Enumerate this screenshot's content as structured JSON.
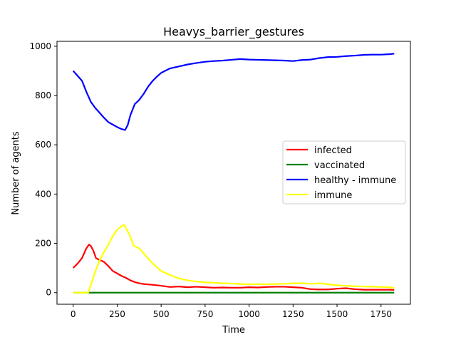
{
  "chart_data": {
    "type": "line",
    "title": "Heavys_barrier_gestures",
    "xlabel": "Time",
    "ylabel": "Number of agents",
    "xlim": [
      -92,
      1917
    ],
    "ylim": [
      -47,
      1020
    ],
    "xticks": [
      0,
      250,
      500,
      750,
      1000,
      1250,
      1500,
      1750
    ],
    "yticks": [
      0,
      200,
      400,
      600,
      800,
      1000
    ],
    "legend_position": "center-right",
    "grid": false,
    "series": [
      {
        "name": "infected",
        "color": "#ff0000",
        "x": [
          0,
          25,
          50,
          75,
          90,
          100,
          115,
          130,
          150,
          175,
          200,
          225,
          250,
          275,
          300,
          325,
          350,
          375,
          400,
          450,
          500,
          550,
          600,
          650,
          700,
          750,
          800,
          850,
          900,
          950,
          1000,
          1050,
          1100,
          1150,
          1200,
          1250,
          1300,
          1350,
          1400,
          1450,
          1500,
          1550,
          1600,
          1650,
          1700,
          1750,
          1800,
          1825
        ],
        "values": [
          100,
          118,
          140,
          180,
          195,
          190,
          170,
          140,
          133,
          125,
          108,
          88,
          78,
          68,
          60,
          50,
          43,
          38,
          35,
          32,
          28,
          23,
          25,
          22,
          24,
          22,
          20,
          21,
          20,
          20,
          22,
          21,
          23,
          24,
          24,
          22,
          20,
          14,
          13,
          13,
          16,
          18,
          14,
          12,
          12,
          12,
          12,
          11
        ]
      },
      {
        "name": "vaccinated",
        "color": "#008000",
        "x": [
          0,
          1825
        ],
        "values": [
          0,
          0
        ]
      },
      {
        "name": "healthy - immune",
        "color": "#0000ff",
        "x": [
          0,
          25,
          50,
          75,
          100,
          125,
          150,
          175,
          200,
          225,
          250,
          275,
          295,
          310,
          325,
          350,
          375,
          400,
          425,
          450,
          475,
          500,
          550,
          600,
          650,
          700,
          750,
          800,
          850,
          900,
          950,
          1000,
          1050,
          1100,
          1150,
          1200,
          1250,
          1300,
          1350,
          1400,
          1450,
          1500,
          1550,
          1600,
          1650,
          1700,
          1750,
          1800,
          1825
        ],
        "values": [
          900,
          880,
          860,
          815,
          775,
          750,
          730,
          710,
          692,
          682,
          672,
          664,
          660,
          680,
          720,
          765,
          782,
          806,
          835,
          858,
          876,
          892,
          910,
          918,
          926,
          932,
          937,
          940,
          942,
          945,
          948,
          946,
          945,
          944,
          943,
          942,
          940,
          944,
          946,
          952,
          956,
          957,
          960,
          962,
          965,
          966,
          966,
          968,
          970
        ]
      },
      {
        "name": "immune",
        "color": "#ffff00",
        "x": [
          0,
          50,
          85,
          100,
          125,
          150,
          175,
          200,
          225,
          250,
          275,
          290,
          305,
          320,
          345,
          375,
          400,
          425,
          450,
          500,
          550,
          600,
          650,
          700,
          750,
          800,
          850,
          900,
          950,
          1000,
          1050,
          1100,
          1150,
          1200,
          1250,
          1300,
          1350,
          1400,
          1450,
          1500,
          1550,
          1600,
          1650,
          1700,
          1750,
          1800,
          1825
        ],
        "values": [
          0,
          0,
          0,
          30,
          85,
          130,
          165,
          195,
          230,
          255,
          270,
          275,
          255,
          235,
          190,
          180,
          160,
          140,
          120,
          88,
          72,
          58,
          50,
          45,
          42,
          40,
          38,
          37,
          35,
          34,
          34,
          34,
          35,
          36,
          38,
          38,
          36,
          38,
          34,
          30,
          28,
          26,
          25,
          24,
          23,
          22,
          19
        ]
      }
    ]
  }
}
